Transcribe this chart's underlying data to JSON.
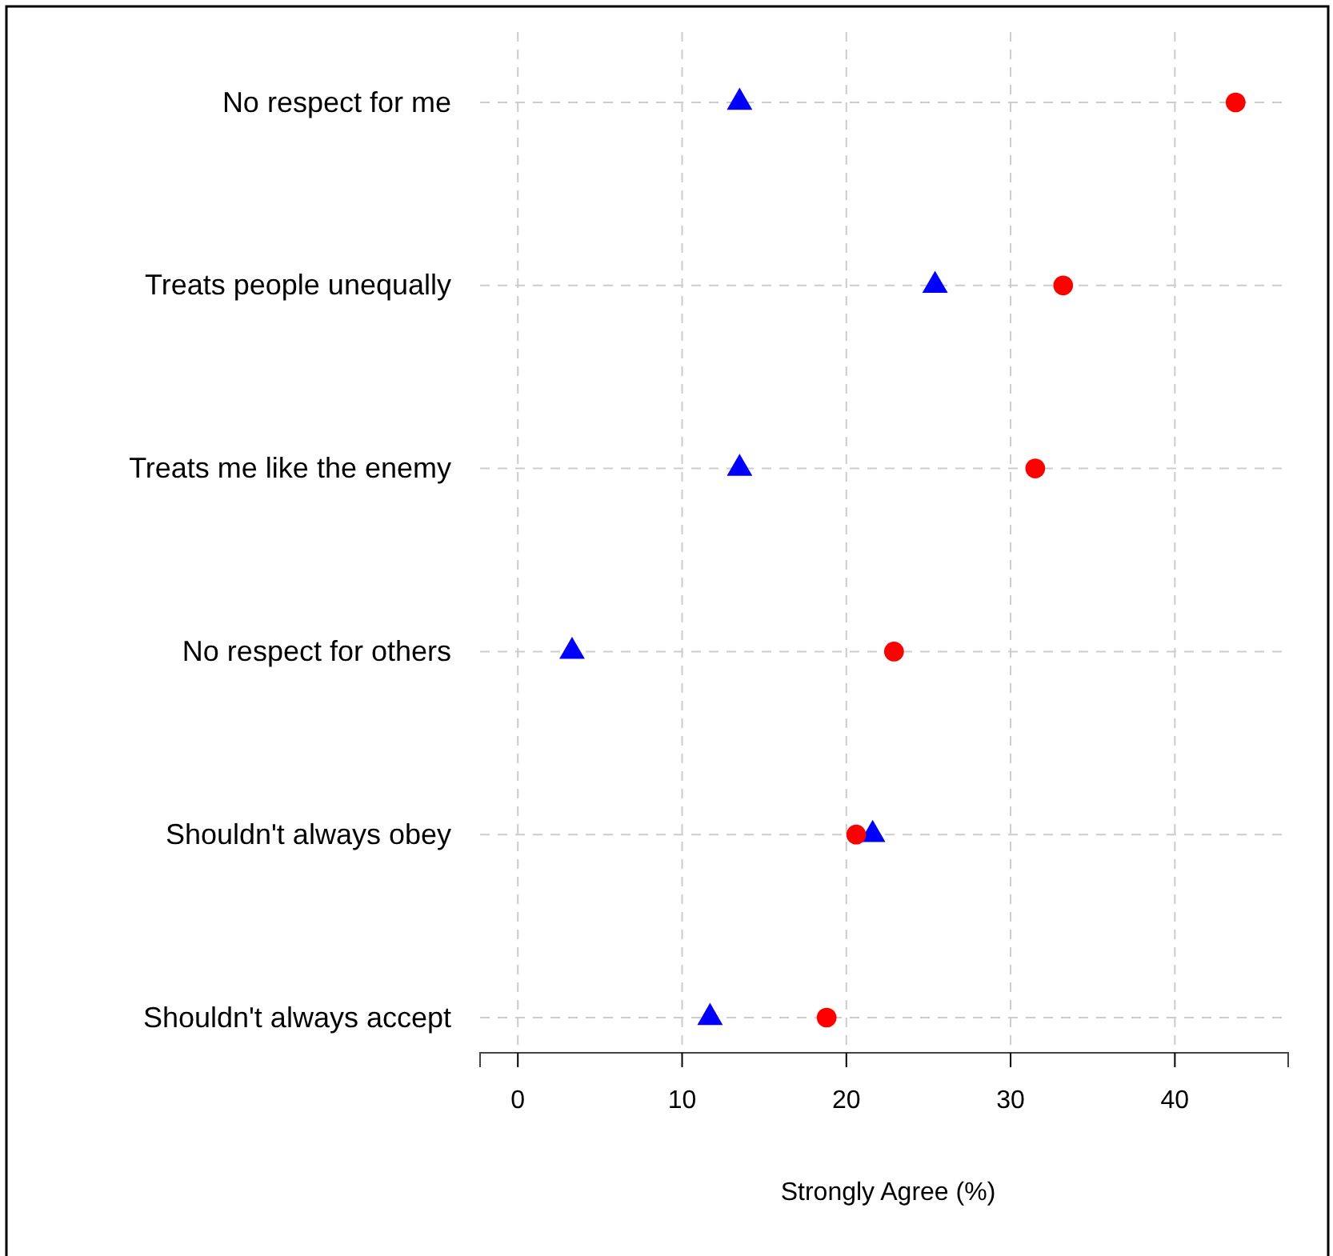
{
  "chart_data": {
    "type": "scatter",
    "xlabel": "Strongly Agree (%)",
    "categories": [
      "No respect for me",
      "Treats people unequally",
      "Treats me like the enemy",
      "No respect for others",
      "Shouldn't always obey",
      "Shouldn't always accept"
    ],
    "series": [
      {
        "color": "#0000ff",
        "marker": "triangle",
        "values": [
          13.5,
          25.4,
          13.5,
          3.3,
          21.6,
          11.7
        ]
      },
      {
        "color": "#ff0000",
        "marker": "circle",
        "values": [
          43.7,
          33.2,
          31.5,
          22.9,
          20.6,
          18.8
        ]
      }
    ],
    "orientation": "horizontal",
    "xlim": [
      -2.3,
      46.9
    ],
    "xticks": [
      0,
      10,
      20,
      30,
      40
    ],
    "grid": true
  }
}
